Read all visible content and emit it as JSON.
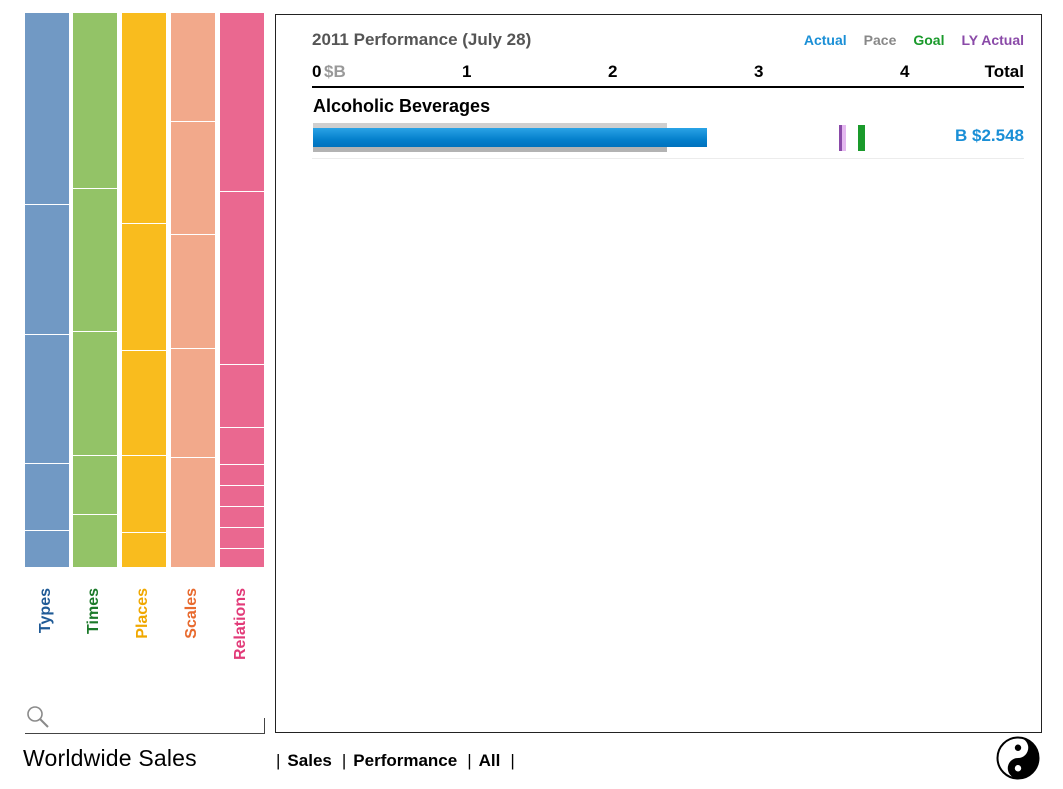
{
  "facets": [
    {
      "name": "Types",
      "color": "#1f5a96",
      "fill": "#7199c4",
      "segments": [
        191,
        129,
        129,
        67,
        37
      ]
    },
    {
      "name": "Times",
      "color": "#1c7a2a",
      "fill": "#93c367",
      "segments": [
        174,
        143,
        123,
        59,
        53
      ]
    },
    {
      "name": "Places",
      "color": "#f0a800",
      "fill": "#f9bc1e",
      "segments": [
        210,
        126,
        105,
        77,
        35
      ]
    },
    {
      "name": "Scales",
      "color": "#e86a2e",
      "fill": "#f2a98b",
      "segments": [
        108,
        113,
        113,
        109,
        110
      ]
    },
    {
      "name": "Relations",
      "color": "#e23a78",
      "fill": "#ea6890",
      "segments": [
        184,
        179,
        65,
        38,
        22,
        22,
        22,
        21,
        20
      ]
    }
  ],
  "search": {
    "placeholder": "",
    "value": ""
  },
  "footer": {
    "title": "Worldwide Sales",
    "nav": [
      "Sales",
      "Performance",
      "All"
    ],
    "separator": "|"
  },
  "panel": {
    "title": "2011 Performance (July 28)",
    "legend": [
      {
        "label": "Actual",
        "color": "#1a8fd6"
      },
      {
        "label": "Pace",
        "color": "#888888"
      },
      {
        "label": "Goal",
        "color": "#1a9a2b"
      },
      {
        "label": "LY Actual",
        "color": "#8a4aa8"
      }
    ],
    "axis": {
      "zero": "0",
      "unit": "$B",
      "ticks": [
        "1",
        "2",
        "3",
        "4"
      ],
      "total_label": "Total",
      "max": 4.8
    }
  },
  "chart_data": {
    "type": "bar",
    "title": "2011 Performance (July 28)",
    "xlabel": "$B",
    "xlim": [
      0,
      4.8
    ],
    "categories": [
      "Alcoholic Beverages"
    ],
    "series": [
      {
        "name": "Actual",
        "values": [
          2.548
        ]
      },
      {
        "name": "Pace",
        "values": [
          2.28
        ]
      },
      {
        "name": "Goal",
        "values": [
          3.73
        ]
      },
      {
        "name": "LY Actual",
        "values": [
          3.6
        ]
      }
    ],
    "total_labels": [
      "B $2.548"
    ]
  }
}
